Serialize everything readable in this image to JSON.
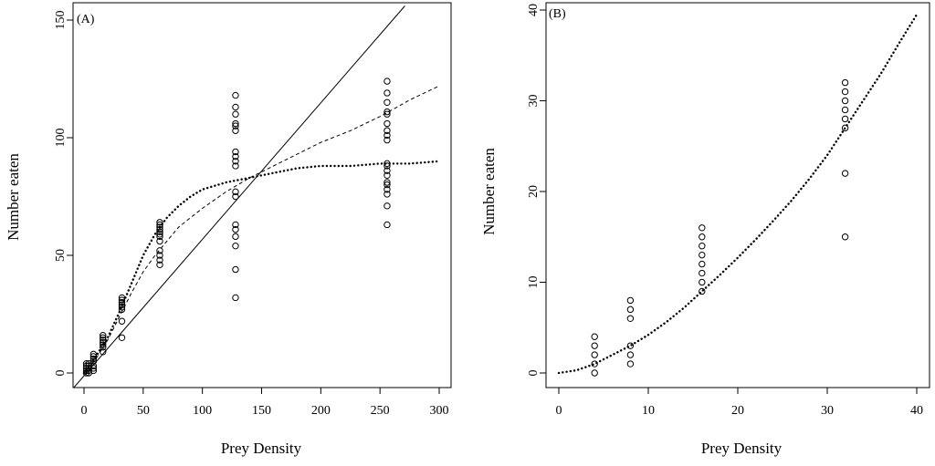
{
  "chart_data": [
    {
      "type": "scatter",
      "panel_label": "(A)",
      "xlabel": "Prey Density",
      "ylabel": "Number eaten",
      "xlim": [
        0,
        300
      ],
      "ylim": [
        0,
        150
      ],
      "xticks": [
        0,
        50,
        100,
        150,
        200,
        250,
        300
      ],
      "yticks": [
        0,
        50,
        100,
        150
      ],
      "grid": false,
      "legend": "none",
      "points": [
        [
          2,
          0
        ],
        [
          2,
          1
        ],
        [
          2,
          2
        ],
        [
          2,
          3
        ],
        [
          2,
          4
        ],
        [
          4,
          0
        ],
        [
          4,
          1
        ],
        [
          4,
          2
        ],
        [
          4,
          3
        ],
        [
          4,
          4
        ],
        [
          8,
          1
        ],
        [
          8,
          2
        ],
        [
          8,
          3
        ],
        [
          8,
          5
        ],
        [
          8,
          6
        ],
        [
          8,
          7
        ],
        [
          8,
          8
        ],
        [
          16,
          9
        ],
        [
          16,
          11
        ],
        [
          16,
          12
        ],
        [
          16,
          13
        ],
        [
          16,
          14
        ],
        [
          16,
          15
        ],
        [
          16,
          16
        ],
        [
          32,
          15
        ],
        [
          32,
          22
        ],
        [
          32,
          27
        ],
        [
          32,
          28
        ],
        [
          32,
          29
        ],
        [
          32,
          30
        ],
        [
          32,
          31
        ],
        [
          32,
          32
        ],
        [
          64,
          46
        ],
        [
          64,
          48
        ],
        [
          64,
          50
        ],
        [
          64,
          52
        ],
        [
          64,
          56
        ],
        [
          64,
          58
        ],
        [
          64,
          59
        ],
        [
          64,
          60
        ],
        [
          64,
          61
        ],
        [
          64,
          62
        ],
        [
          64,
          63
        ],
        [
          64,
          64
        ],
        [
          128,
          32
        ],
        [
          128,
          44
        ],
        [
          128,
          54
        ],
        [
          128,
          58
        ],
        [
          128,
          61
        ],
        [
          128,
          63
        ],
        [
          128,
          75
        ],
        [
          128,
          77
        ],
        [
          128,
          88
        ],
        [
          128,
          90
        ],
        [
          128,
          92
        ],
        [
          128,
          94
        ],
        [
          128,
          103
        ],
        [
          128,
          105
        ],
        [
          128,
          106
        ],
        [
          128,
          110
        ],
        [
          128,
          113
        ],
        [
          128,
          118
        ],
        [
          256,
          63
        ],
        [
          256,
          71
        ],
        [
          256,
          76
        ],
        [
          256,
          78
        ],
        [
          256,
          80
        ],
        [
          256,
          81
        ],
        [
          256,
          84
        ],
        [
          256,
          86
        ],
        [
          256,
          88
        ],
        [
          256,
          89
        ],
        [
          256,
          99
        ],
        [
          256,
          101
        ],
        [
          256,
          103
        ],
        [
          256,
          106
        ],
        [
          256,
          110
        ],
        [
          256,
          111
        ],
        [
          256,
          115
        ],
        [
          256,
          119
        ],
        [
          256,
          124
        ]
      ],
      "curves": [
        {
          "style": "solid",
          "points": [
            [
              -10,
              -7
            ],
            [
              271,
              156
            ]
          ]
        },
        {
          "style": "dashed",
          "points": [
            [
              0,
              0
            ],
            [
              10,
              6
            ],
            [
              20,
              14
            ],
            [
              30,
              24
            ],
            [
              40,
              34
            ],
            [
              50,
              43
            ],
            [
              60,
              50
            ],
            [
              80,
              62
            ],
            [
              100,
              70
            ],
            [
              120,
              77
            ],
            [
              140,
              83
            ],
            [
              160,
              88
            ],
            [
              180,
              93
            ],
            [
              200,
              98
            ],
            [
              225,
              103
            ],
            [
              250,
              109
            ],
            [
              275,
              116
            ],
            [
              300,
              122
            ]
          ]
        },
        {
          "style": "dotted",
          "points": [
            [
              0,
              0
            ],
            [
              10,
              7
            ],
            [
              20,
              15
            ],
            [
              30,
              26
            ],
            [
              40,
              38
            ],
            [
              50,
              50
            ],
            [
              60,
              59
            ],
            [
              70,
              66
            ],
            [
              80,
              71
            ],
            [
              90,
              75
            ],
            [
              100,
              78
            ],
            [
              120,
              81
            ],
            [
              140,
              83
            ],
            [
              160,
              85
            ],
            [
              180,
              87
            ],
            [
              200,
              88
            ],
            [
              225,
              88
            ],
            [
              250,
              89
            ],
            [
              275,
              89
            ],
            [
              300,
              90
            ]
          ]
        }
      ]
    },
    {
      "type": "scatter",
      "panel_label": "(B)",
      "xlabel": "Prey Density",
      "ylabel": "Number eaten",
      "xlim": [
        0,
        40
      ],
      "ylim": [
        0,
        40
      ],
      "xticks": [
        0,
        10,
        20,
        30,
        40
      ],
      "yticks": [
        0,
        10,
        20,
        30,
        40
      ],
      "grid": false,
      "legend": "none",
      "points": [
        [
          4,
          0
        ],
        [
          4,
          1
        ],
        [
          4,
          2
        ],
        [
          4,
          3
        ],
        [
          4,
          4
        ],
        [
          8,
          1
        ],
        [
          8,
          2
        ],
        [
          8,
          3
        ],
        [
          8,
          6
        ],
        [
          8,
          7
        ],
        [
          8,
          8
        ],
        [
          16,
          9
        ],
        [
          16,
          10
        ],
        [
          16,
          11
        ],
        [
          16,
          12
        ],
        [
          16,
          13
        ],
        [
          16,
          14
        ],
        [
          16,
          15
        ],
        [
          16,
          16
        ],
        [
          32,
          15
        ],
        [
          32,
          22
        ],
        [
          32,
          27
        ],
        [
          32,
          28
        ],
        [
          32,
          29
        ],
        [
          32,
          30
        ],
        [
          32,
          31
        ],
        [
          32,
          32
        ]
      ],
      "curves": [
        {
          "style": "dotted",
          "points": [
            [
              0,
              0
            ],
            [
              2,
              0.3
            ],
            [
              4,
              1
            ],
            [
              6,
              2
            ],
            [
              8,
              3
            ],
            [
              10,
              4.2
            ],
            [
              12,
              5.6
            ],
            [
              14,
              7.2
            ],
            [
              16,
              9
            ],
            [
              18,
              10.8
            ],
            [
              20,
              12.7
            ],
            [
              22,
              14.7
            ],
            [
              24,
              16.8
            ],
            [
              26,
              19
            ],
            [
              28,
              21.4
            ],
            [
              30,
              24
            ],
            [
              32,
              27
            ],
            [
              34,
              30
            ],
            [
              36,
              33
            ],
            [
              38,
              36.3
            ],
            [
              40,
              39.5
            ]
          ]
        }
      ]
    }
  ]
}
